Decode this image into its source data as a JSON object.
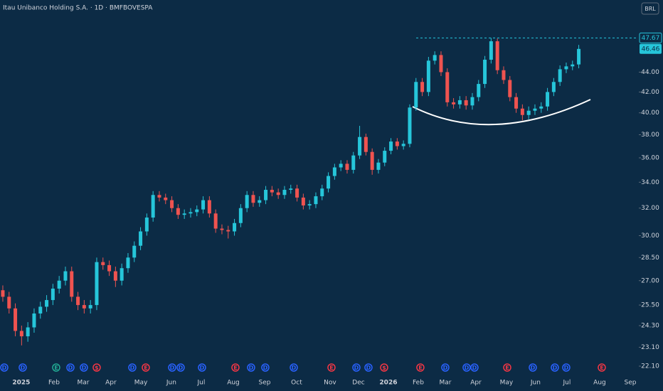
{
  "chart_data": {
    "type": "candlestick",
    "title": "Itau Unibanco Holding S.A. · 1D · BMFBOVESPA",
    "currency": "BRL",
    "log_scale": true,
    "up_color": "#26c6da",
    "down_color": "#ef5350",
    "open": [
      26.4,
      26.0,
      25.3,
      24.0,
      23.7,
      24.2,
      25.0,
      25.4,
      25.8,
      26.5,
      27.0,
      27.6,
      26.0,
      25.5,
      25.3,
      25.5,
      28.2,
      28.0,
      27.6,
      27.0,
      27.8,
      28.5,
      29.3,
      30.3,
      31.3,
      33.0,
      32.8,
      32.6,
      32.0,
      31.5,
      31.6,
      31.7,
      31.9,
      32.6,
      31.6,
      30.5,
      30.4,
      30.3,
      30.9,
      32.0,
      33.0,
      32.4,
      32.6,
      33.4,
      33.2,
      33.0,
      33.4,
      33.5,
      32.8,
      32.2,
      32.3,
      32.9,
      33.5,
      34.5,
      35.2,
      35.5,
      35.0,
      36.2,
      37.8,
      36.5,
      35.0,
      35.6,
      36.6,
      37.4,
      37.0,
      37.2,
      40.5,
      43.0,
      42.0,
      45.2,
      45.8,
      44.0,
      41.0,
      40.8,
      41.2,
      40.7,
      41.5,
      42.8,
      45.3,
      47.3,
      44.2,
      43.2,
      41.5,
      40.4,
      39.8,
      40.2,
      40.4,
      40.6,
      42.0,
      43.0,
      44.3,
      44.6,
      44.8
    ],
    "high": [
      26.7,
      26.3,
      25.6,
      24.3,
      24.5,
      25.3,
      25.7,
      26.1,
      26.8,
      27.3,
      27.9,
      27.9,
      26.3,
      25.8,
      25.8,
      28.5,
      28.5,
      28.3,
      27.9,
      28.1,
      28.8,
      29.6,
      30.6,
      31.6,
      33.3,
      33.3,
      33.1,
      32.9,
      32.3,
      31.9,
      32.0,
      32.2,
      32.9,
      32.9,
      31.9,
      30.8,
      30.7,
      31.2,
      32.3,
      33.3,
      33.3,
      32.9,
      33.7,
      33.7,
      33.5,
      33.7,
      33.8,
      33.8,
      33.1,
      32.6,
      33.2,
      33.8,
      34.8,
      35.5,
      35.8,
      35.8,
      36.5,
      38.8,
      38.1,
      36.8,
      35.9,
      36.9,
      37.7,
      37.7,
      37.5,
      40.8,
      43.4,
      43.4,
      45.6,
      46.2,
      46.2,
      44.4,
      41.4,
      41.6,
      41.6,
      41.9,
      43.2,
      45.7,
      47.67,
      47.6,
      44.6,
      43.6,
      41.9,
      40.8,
      40.6,
      40.8,
      41.0,
      42.4,
      43.4,
      44.7,
      45.0,
      45.2,
      46.9
    ],
    "low": [
      25.7,
      25.0,
      23.7,
      23.2,
      23.4,
      23.9,
      24.7,
      25.1,
      25.5,
      26.2,
      26.7,
      25.7,
      25.2,
      25.0,
      25.0,
      25.2,
      27.7,
      27.3,
      26.6,
      26.7,
      27.5,
      28.2,
      29.0,
      30.0,
      31.0,
      32.5,
      32.3,
      31.7,
      31.2,
      31.2,
      31.3,
      31.4,
      31.6,
      31.3,
      30.2,
      30.1,
      29.8,
      30.0,
      30.6,
      31.7,
      32.1,
      32.1,
      32.3,
      32.9,
      32.7,
      32.7,
      33.1,
      32.5,
      31.9,
      31.9,
      32.0,
      32.6,
      33.2,
      34.2,
      34.9,
      34.7,
      34.7,
      35.9,
      36.2,
      34.6,
      34.7,
      35.3,
      36.3,
      36.7,
      36.7,
      36.9,
      40.2,
      41.6,
      41.6,
      44.8,
      43.6,
      40.6,
      40.4,
      40.4,
      40.3,
      40.3,
      41.1,
      42.4,
      44.9,
      43.8,
      42.8,
      41.1,
      40.0,
      39.3,
      39.4,
      39.8,
      40.0,
      40.2,
      41.6,
      42.6,
      43.9,
      44.2,
      44.4
    ],
    "close": [
      26.0,
      25.3,
      24.0,
      23.7,
      24.2,
      25.0,
      25.4,
      25.8,
      26.5,
      27.0,
      27.6,
      26.0,
      25.5,
      25.3,
      25.5,
      28.2,
      28.0,
      27.6,
      27.0,
      27.8,
      28.5,
      29.3,
      30.3,
      31.3,
      33.0,
      32.8,
      32.6,
      32.0,
      31.5,
      31.6,
      31.7,
      31.9,
      32.6,
      31.6,
      30.5,
      30.4,
      30.3,
      30.9,
      32.0,
      33.0,
      32.4,
      32.6,
      33.4,
      33.2,
      33.0,
      33.4,
      33.5,
      32.8,
      32.2,
      32.3,
      32.9,
      33.5,
      34.5,
      35.2,
      35.5,
      35.0,
      36.2,
      37.8,
      36.5,
      35.0,
      35.6,
      36.6,
      37.4,
      37.0,
      37.2,
      40.5,
      43.0,
      42.0,
      45.2,
      45.8,
      44.0,
      41.0,
      40.8,
      41.2,
      40.7,
      41.5,
      42.8,
      45.3,
      47.3,
      44.2,
      43.2,
      41.5,
      40.4,
      39.8,
      40.2,
      40.4,
      40.6,
      42.0,
      43.0,
      44.3,
      44.6,
      44.8,
      46.46
    ],
    "xlim": [
      -0.45,
      101.48
    ],
    "xticks": [
      {
        "value": 2.95,
        "label": "2025"
      },
      {
        "value": 8.18,
        "label": "Feb"
      },
      {
        "value": 12.84,
        "label": "Mar"
      },
      {
        "value": 17.27,
        "label": "Apr"
      },
      {
        "value": 22.05,
        "label": "May"
      },
      {
        "value": 26.93,
        "label": "Jun"
      },
      {
        "value": 31.7,
        "label": "Jul"
      },
      {
        "value": 36.82,
        "label": "Aug"
      },
      {
        "value": 41.82,
        "label": "Sep"
      },
      {
        "value": 46.93,
        "label": "Oct"
      },
      {
        "value": 52.27,
        "label": "Nov"
      },
      {
        "value": 56.82,
        "label": "Dec"
      },
      {
        "value": 61.59,
        "label": "2026"
      },
      {
        "value": 66.36,
        "label": "Feb"
      },
      {
        "value": 70.68,
        "label": "Mar"
      },
      {
        "value": 75.57,
        "label": "Apr"
      },
      {
        "value": 80.45,
        "label": "May"
      },
      {
        "value": 85.11,
        "label": "Jun"
      },
      {
        "value": 90.11,
        "label": "Jul"
      },
      {
        "value": 95.34,
        "label": "Aug"
      },
      {
        "value": 100.23,
        "label": "Sep"
      }
    ],
    "ylim": [
      20.85,
      52.1
    ],
    "yticks": [
      {
        "value": 22.1,
        "label": "22.10"
      },
      {
        "value": 23.1,
        "label": "23.10"
      },
      {
        "value": 24.3,
        "label": "24.30"
      },
      {
        "value": 25.5,
        "label": "25.50"
      },
      {
        "value": 27,
        "label": "27.00"
      },
      {
        "value": 28.5,
        "label": "28.50"
      },
      {
        "value": 30,
        "label": "30.00"
      },
      {
        "value": 32,
        "label": "32.00"
      },
      {
        "value": 34,
        "label": "34.00"
      },
      {
        "value": 36,
        "label": "36.00"
      },
      {
        "value": 38,
        "label": "38.00"
      },
      {
        "value": 40,
        "label": "40.00"
      },
      {
        "value": 42,
        "label": "42.00"
      },
      {
        "value": 44,
        "label": "44.00"
      }
    ],
    "high_line": 47.67,
    "last_price": 46.46,
    "events": [
      {
        "x": 0.23,
        "label": "D",
        "color": "#2962ff"
      },
      {
        "x": 3.18,
        "label": "D",
        "color": "#2962ff"
      },
      {
        "x": 8.52,
        "label": "E",
        "color": "#22ab94"
      },
      {
        "x": 10.8,
        "label": "D",
        "color": "#2962ff"
      },
      {
        "x": 12.95,
        "label": "D",
        "color": "#2962ff"
      },
      {
        "x": 15,
        "label": "$",
        "color": "#f23645"
      },
      {
        "x": 20.68,
        "label": "D",
        "color": "#2962ff"
      },
      {
        "x": 22.84,
        "label": "E",
        "color": "#f23645"
      },
      {
        "x": 27.05,
        "label": "D",
        "color": "#2962ff"
      },
      {
        "x": 28.41,
        "label": "D",
        "color": "#2962ff"
      },
      {
        "x": 31.82,
        "label": "D",
        "color": "#2962ff"
      },
      {
        "x": 37.16,
        "label": "E",
        "color": "#f23645"
      },
      {
        "x": 39.66,
        "label": "D",
        "color": "#2962ff"
      },
      {
        "x": 41.93,
        "label": "D",
        "color": "#2962ff"
      },
      {
        "x": 46.48,
        "label": "D",
        "color": "#2962ff"
      },
      {
        "x": 52.5,
        "label": "E",
        "color": "#f23645"
      },
      {
        "x": 56.48,
        "label": "D",
        "color": "#2962ff"
      },
      {
        "x": 58.41,
        "label": "D",
        "color": "#2962ff"
      },
      {
        "x": 60.91,
        "label": "$",
        "color": "#f23645"
      },
      {
        "x": 66.7,
        "label": "E",
        "color": "#f23645"
      },
      {
        "x": 70.68,
        "label": "D",
        "color": "#2962ff"
      },
      {
        "x": 74.09,
        "label": "D",
        "color": "#2962ff"
      },
      {
        "x": 75.34,
        "label": "D",
        "color": "#2962ff"
      },
      {
        "x": 80.57,
        "label": "E",
        "color": "#f23645"
      },
      {
        "x": 84.66,
        "label": "D",
        "color": "#2962ff"
      },
      {
        "x": 88.18,
        "label": "D",
        "color": "#2962ff"
      },
      {
        "x": 90,
        "label": "D",
        "color": "#2962ff"
      },
      {
        "x": 95.68,
        "label": "E",
        "color": "#f23645"
      }
    ]
  }
}
